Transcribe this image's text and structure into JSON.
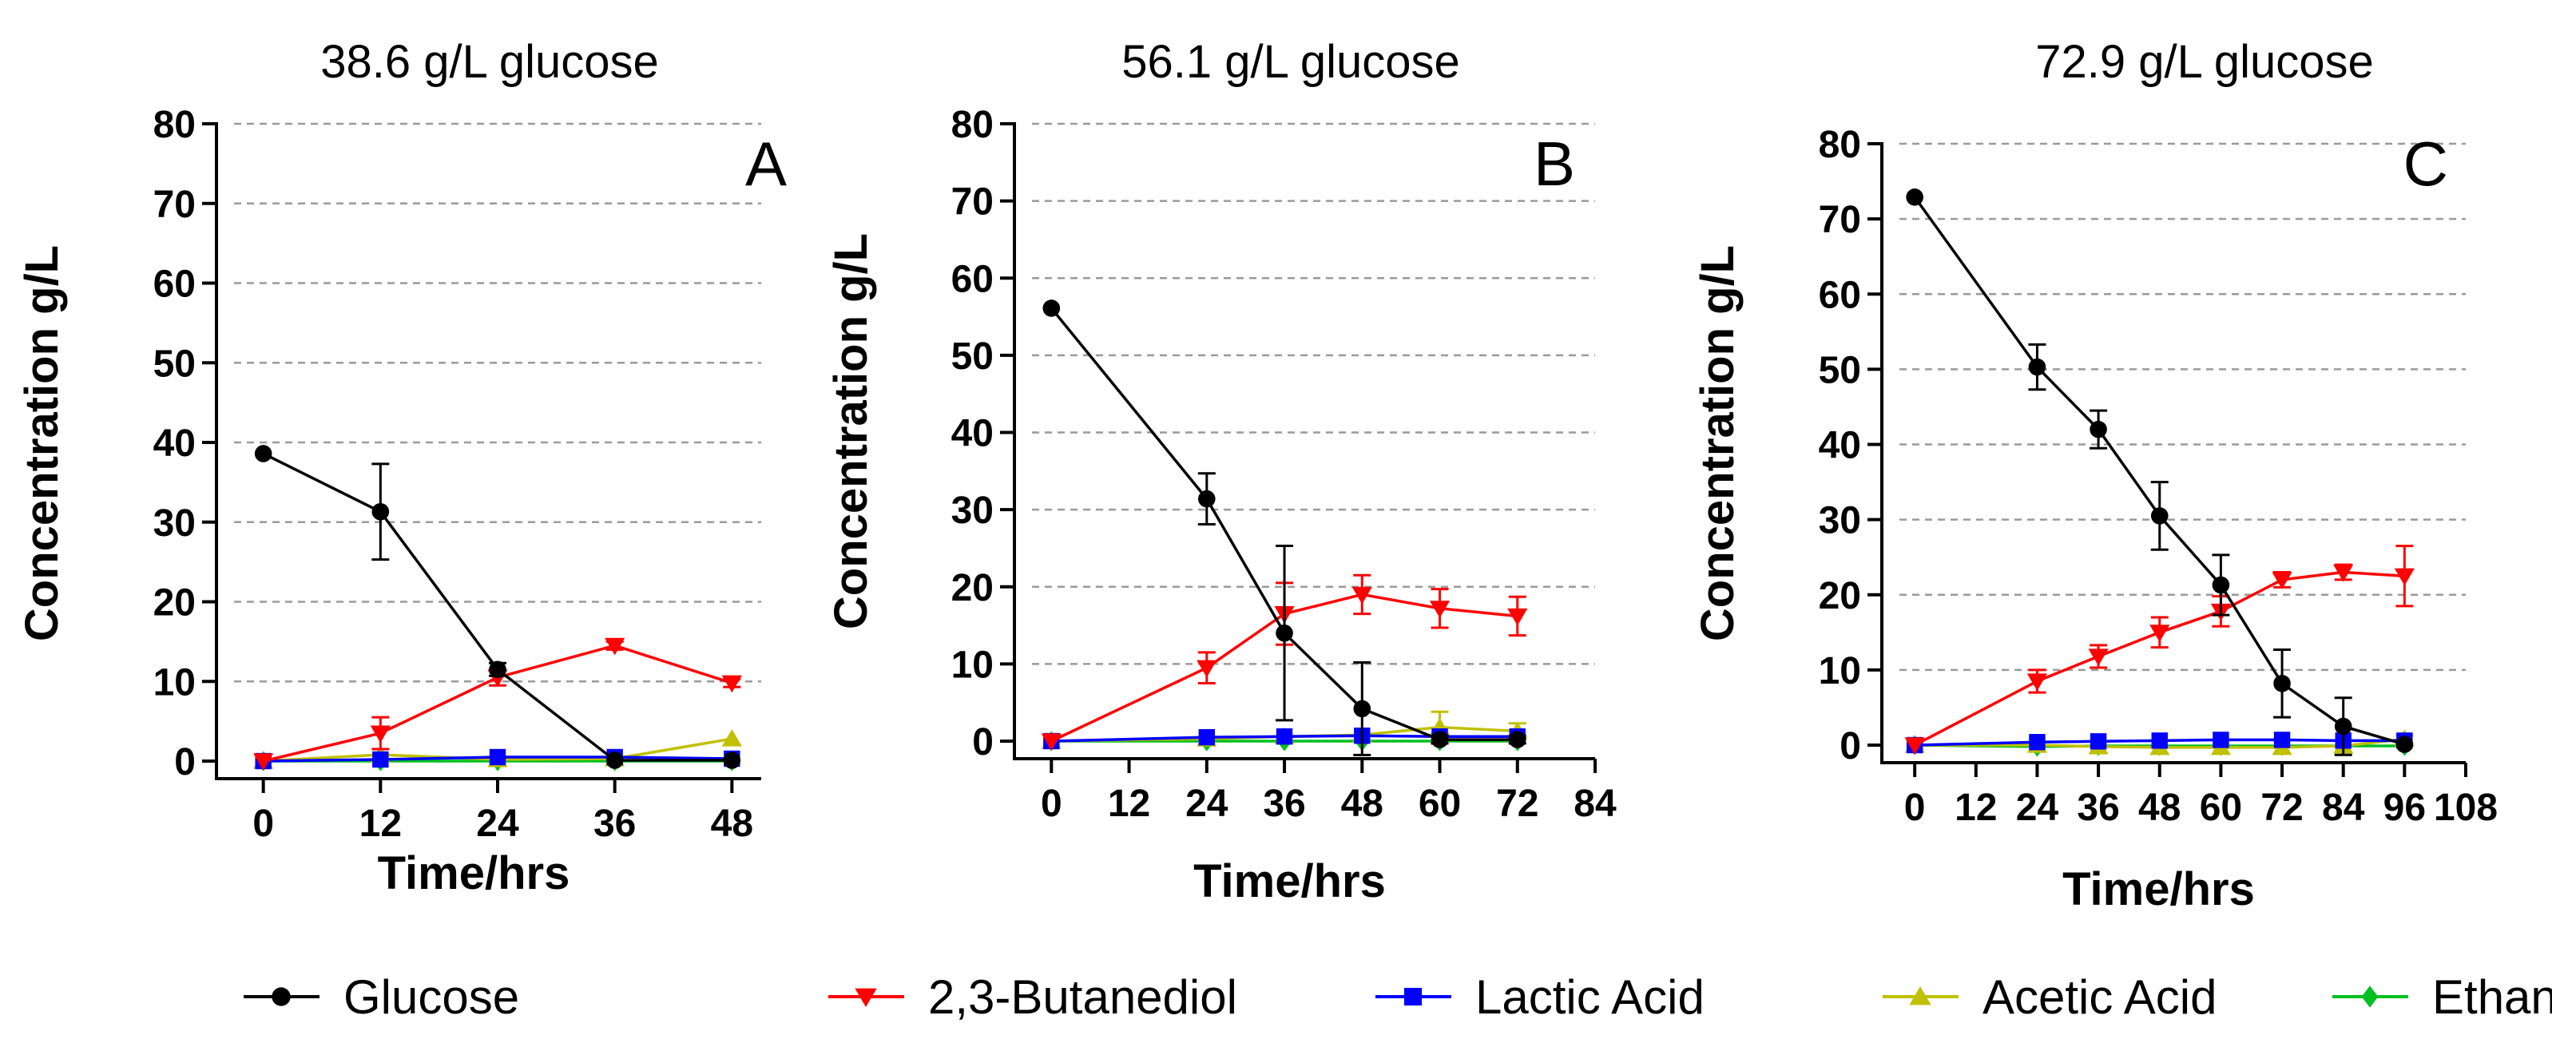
{
  "figure": {
    "ylabel": "Concentration g/L",
    "xlabel": "Time/hrs",
    "legend_position": "bottom"
  },
  "chart_data": [
    {
      "type": "line",
      "title": "38.6 g/L glucose",
      "panel_label": "A",
      "xlabel": "Time/hrs",
      "ylabel": "Concentration g/L",
      "xlim": [
        -3,
        51
      ],
      "ylim": [
        0,
        80
      ],
      "xticks": [
        0,
        12,
        24,
        36,
        48
      ],
      "yticks": [
        0,
        10,
        20,
        30,
        40,
        50,
        60,
        70,
        80
      ],
      "grid": "horizontal dashed",
      "series": [
        {
          "name": "Glucose",
          "x": [
            0,
            12,
            24,
            36,
            48
          ],
          "y": [
            38.6,
            31.3,
            11.5,
            0.1,
            0.1
          ],
          "err": [
            0.3,
            6.0,
            0.8,
            0.2,
            0.2
          ]
        },
        {
          "name": "2,3-Butanediol",
          "x": [
            0,
            12,
            24,
            36,
            48
          ],
          "y": [
            0,
            3.5,
            10.5,
            14.5,
            9.8
          ],
          "err": [
            0,
            2.0,
            1.0,
            0.5,
            0.5
          ]
        },
        {
          "name": "Lactic Acid",
          "x": [
            0,
            12,
            24,
            36,
            48
          ],
          "y": [
            0,
            0.2,
            0.5,
            0.5,
            0.3
          ],
          "err": [
            0,
            0.1,
            0.1,
            0.1,
            0.1
          ]
        },
        {
          "name": "Acetic Acid",
          "x": [
            0,
            12,
            24,
            36,
            48
          ],
          "y": [
            0,
            0.8,
            0.2,
            0.3,
            2.8
          ],
          "err": [
            0,
            0.1,
            0.1,
            0.1,
            0.3
          ]
        },
        {
          "name": "Ethanol",
          "x": [
            0,
            12,
            24,
            36,
            48
          ],
          "y": [
            0,
            0,
            0,
            0,
            0
          ],
          "err": [
            0,
            0,
            0,
            0,
            0
          ]
        }
      ]
    },
    {
      "type": "line",
      "title": "56.1 g/L glucose",
      "panel_label": "B",
      "xlabel": "Time/hrs",
      "ylabel": "Concentration g/L",
      "xlim": [
        -3,
        84
      ],
      "ylim": [
        0,
        80
      ],
      "xticks": [
        0,
        12,
        24,
        36,
        48,
        60,
        72,
        84
      ],
      "yticks": [
        0,
        10,
        20,
        30,
        40,
        50,
        60,
        70,
        80
      ],
      "grid": "horizontal dashed",
      "series": [
        {
          "name": "Glucose",
          "x": [
            0,
            24,
            36,
            48,
            60,
            72
          ],
          "y": [
            56.1,
            31.4,
            14.0,
            4.2,
            0.2,
            0.2
          ],
          "err": [
            0.3,
            3.3,
            11.3,
            6.0,
            0.5,
            0.5
          ]
        },
        {
          "name": "2,3-Butanediol",
          "x": [
            0,
            24,
            36,
            48,
            60,
            72
          ],
          "y": [
            0,
            9.5,
            16.5,
            19.0,
            17.2,
            16.2
          ],
          "err": [
            0,
            2.0,
            4.0,
            2.5,
            2.5,
            2.5
          ]
        },
        {
          "name": "Lactic Acid",
          "x": [
            0,
            24,
            36,
            48,
            60,
            72
          ],
          "y": [
            0,
            0.5,
            0.6,
            0.7,
            0.6,
            0.6
          ],
          "err": [
            0,
            0.2,
            0.2,
            0.2,
            0.2,
            0.2
          ]
        },
        {
          "name": "Acetic Acid",
          "x": [
            0,
            24,
            36,
            48,
            60,
            72
          ],
          "y": [
            0,
            0.3,
            0.6,
            0.8,
            1.8,
            1.3
          ],
          "err": [
            0,
            0.1,
            0.2,
            0.3,
            2.0,
            1.0
          ]
        },
        {
          "name": "Ethanol",
          "x": [
            0,
            24,
            36,
            48,
            60,
            72
          ],
          "y": [
            0,
            0,
            0,
            0,
            0,
            0
          ],
          "err": [
            0,
            0,
            0,
            0,
            0,
            0
          ]
        }
      ]
    },
    {
      "type": "line",
      "title": "72.9 g/L glucose",
      "panel_label": "C",
      "xlabel": "Time/hrs",
      "ylabel": "Concentration g/L",
      "xlim": [
        -3,
        108
      ],
      "ylim": [
        0,
        80
      ],
      "xticks": [
        0,
        12,
        24,
        36,
        48,
        60,
        72,
        84,
        96,
        108
      ],
      "yticks": [
        0,
        10,
        20,
        30,
        40,
        50,
        60,
        70,
        80
      ],
      "grid": "horizontal dashed",
      "series": [
        {
          "name": "Glucose",
          "x": [
            0,
            24,
            36,
            48,
            60,
            72,
            84,
            96
          ],
          "y": [
            72.9,
            50.3,
            42.0,
            30.5,
            21.3,
            8.2,
            2.5,
            0.1
          ],
          "err": [
            0.3,
            3.0,
            2.5,
            4.5,
            4.0,
            4.5,
            3.8,
            0.2
          ]
        },
        {
          "name": "2,3-Butanediol",
          "x": [
            0,
            24,
            36,
            48,
            60,
            72,
            84,
            96
          ],
          "y": [
            0,
            8.5,
            11.8,
            15.0,
            17.8,
            22.0,
            23.0,
            22.5
          ],
          "err": [
            0,
            1.5,
            1.5,
            2.0,
            2.0,
            1.0,
            1.0,
            4.0
          ]
        },
        {
          "name": "Lactic Acid",
          "x": [
            0,
            24,
            36,
            48,
            60,
            72,
            84,
            96
          ],
          "y": [
            0,
            0.4,
            0.5,
            0.6,
            0.7,
            0.7,
            0.6,
            0.6
          ],
          "err": [
            0,
            0.1,
            0.1,
            0.1,
            0.1,
            0.1,
            0.1,
            0.1
          ]
        },
        {
          "name": "Acetic Acid",
          "x": [
            0,
            24,
            36,
            48,
            60,
            72,
            84,
            96
          ],
          "y": [
            0,
            0,
            -0.2,
            -0.3,
            -0.3,
            -0.3,
            -0.1,
            0.8
          ],
          "err": [
            0,
            0.1,
            0.1,
            0.1,
            0.1,
            0.1,
            0.1,
            0.5
          ]
        },
        {
          "name": "Ethanol",
          "x": [
            0,
            24,
            36,
            48,
            60,
            72,
            84,
            96
          ],
          "y": [
            0,
            -0.2,
            -0.1,
            -0.1,
            -0.1,
            -0.1,
            -0.1,
            -0.1
          ],
          "err": [
            0,
            0,
            0,
            0,
            0,
            0,
            0,
            0
          ]
        }
      ]
    }
  ],
  "legend": [
    {
      "name": "Glucose",
      "color": "#000000",
      "marker": "circle"
    },
    {
      "name": "2,3-Butanediol",
      "color": "#ff0000",
      "marker": "triangle-down"
    },
    {
      "name": "Lactic Acid",
      "color": "#0000ff",
      "marker": "square"
    },
    {
      "name": "Acetic Acid",
      "color": "#c0c000",
      "marker": "triangle-up"
    },
    {
      "name": "Ethanol",
      "color": "#00c020",
      "marker": "diamond"
    }
  ]
}
